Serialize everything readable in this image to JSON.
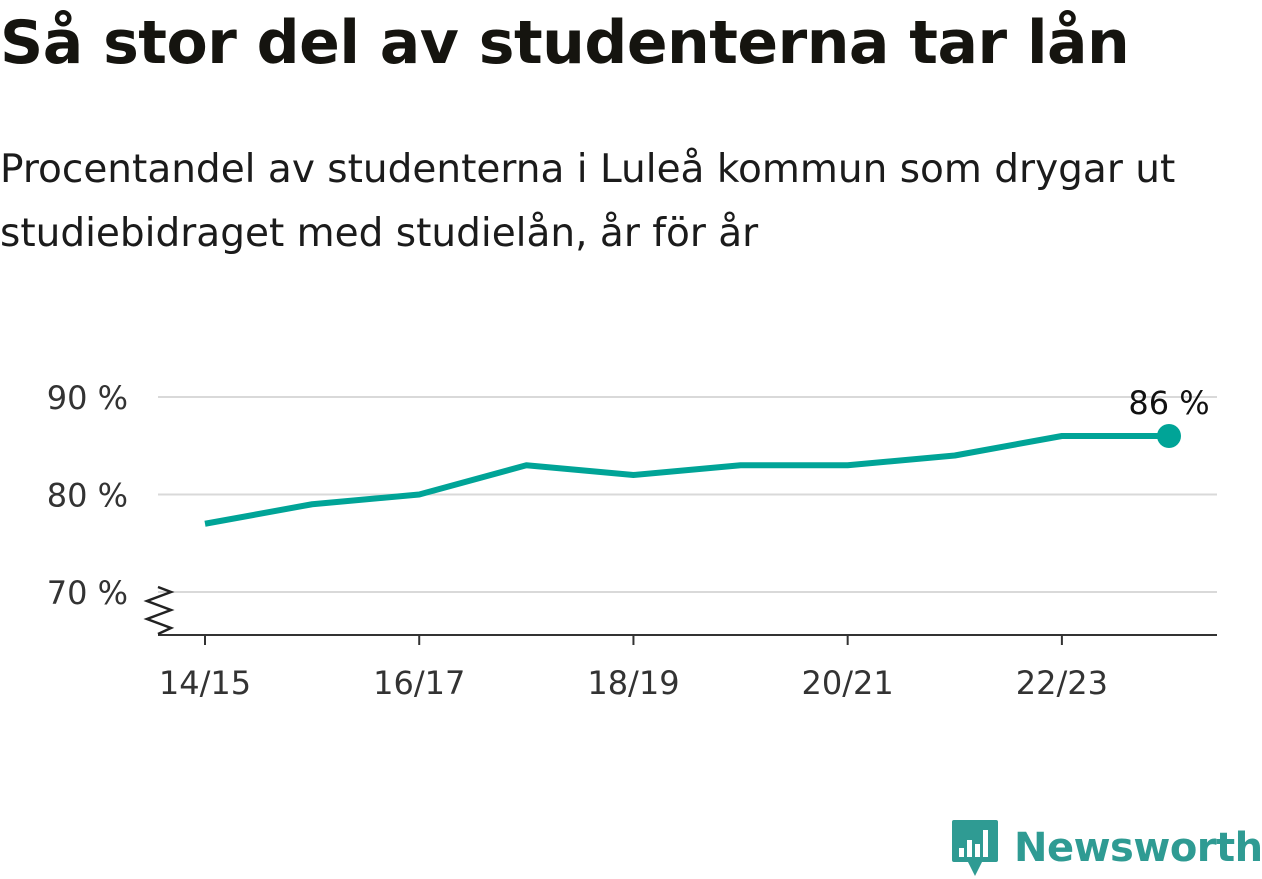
{
  "header": {
    "title": "Så stor del av studenterna tar lån",
    "subtitle": "Procentandel av studenterna i Luleå kommun som drygar ut studiebidraget med studielån, år för år"
  },
  "chart_data": {
    "type": "line",
    "x": [
      "14/15",
      "15/16",
      "16/17",
      "17/18",
      "18/19",
      "19/20",
      "20/21",
      "21/22",
      "22/23",
      "23/24"
    ],
    "series": [
      {
        "values": [
          77,
          79,
          80,
          83,
          82,
          83,
          83,
          84,
          86,
          86
        ]
      }
    ],
    "x_tick_labels": [
      "14/15",
      "16/17",
      "18/19",
      "20/21",
      "22/23"
    ],
    "y_ticks": [
      70,
      80,
      90
    ],
    "y_tick_labels": [
      "70 %",
      "80 %",
      "90 %"
    ],
    "ylim": [
      70,
      90
    ],
    "y_axis_break": true,
    "grid": true,
    "end_label": "86 %",
    "line_color": "#00a497"
  },
  "branding": {
    "logo_text": "Newsworthy",
    "logo_color": "#2f9b93",
    "logo_icon": "newsworthy-logo-icon"
  }
}
